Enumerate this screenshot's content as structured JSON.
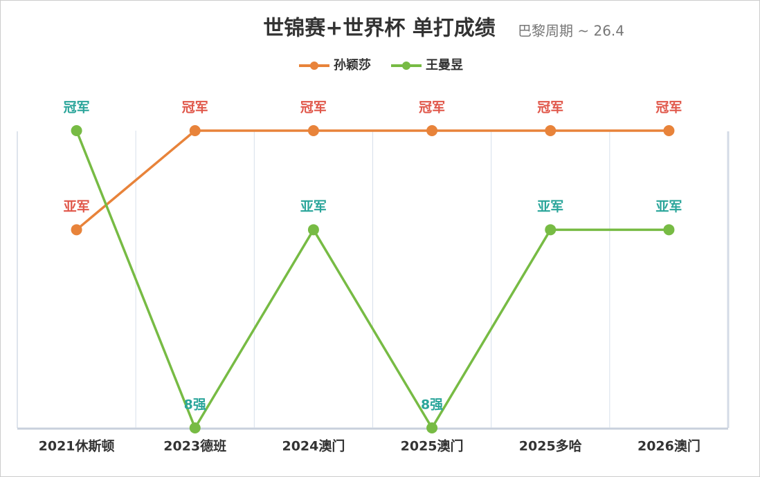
{
  "chart_data": {
    "type": "line",
    "title": "世锦赛+世界杯 单打成绩",
    "subtitle": "巴黎周期 ~ 26.4",
    "categories": [
      "2021休斯顿",
      "2023德班",
      "2024澳门",
      "2025澳门",
      "2025多哈",
      "2026澳门"
    ],
    "series": [
      {
        "name": "孙颖莎",
        "color": "#e8833a",
        "label_color": "#e0574a",
        "values": [
          2,
          1,
          1,
          1,
          1,
          1
        ],
        "value_labels": [
          "亚军",
          "冠军",
          "冠军",
          "冠军",
          "冠军",
          "冠军"
        ]
      },
      {
        "name": "王曼昱",
        "color": "#77bb44",
        "label_color": "#2aa59a",
        "values": [
          1,
          8,
          2,
          8,
          2,
          2
        ],
        "value_labels": [
          "冠军",
          "8强",
          "亚军",
          "8强",
          "亚军",
          "亚军"
        ]
      }
    ],
    "ylim": [
      1,
      8
    ],
    "log_scale": true,
    "y_inverted": true,
    "legend": "top"
  }
}
